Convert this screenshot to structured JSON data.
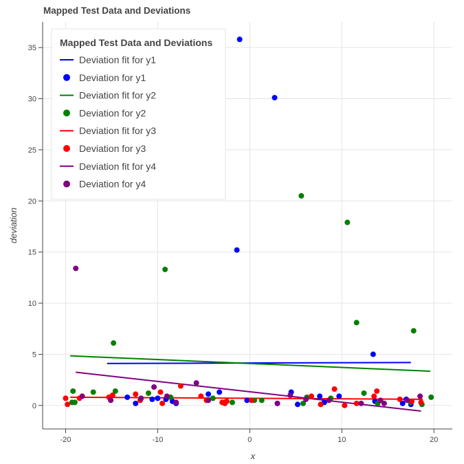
{
  "chart_data": {
    "type": "scatter",
    "title": "Mapped Test Data and Deviations",
    "xlabel": "x",
    "ylabel": "deviation",
    "xlim": [
      -22.5,
      22.0
    ],
    "ylim": [
      -2.3,
      37.5
    ],
    "xticks": [
      -20,
      -10,
      0,
      10,
      20
    ],
    "yticks": [
      0,
      5,
      10,
      15,
      20,
      25,
      30,
      35
    ],
    "grid": true,
    "legend": {
      "title": "Mapped Test Data and Deviations",
      "placement": "top-left"
    },
    "colors": {
      "y1": "#0000ff",
      "y2": "#008000",
      "y3": "#ff0000",
      "y4": "#800080"
    },
    "series": [
      {
        "name": "Deviation fit for y1",
        "kind": "line",
        "color": "#0000ff",
        "x": [
          -15.5,
          17.5
        ],
        "y": [
          4.1,
          4.2
        ]
      },
      {
        "name": "Deviation for y1",
        "kind": "scatter",
        "color": "#0000ff",
        "x": [
          -1.1,
          2.7,
          -1.4,
          13.4,
          -13.3,
          -12.4,
          -10.6,
          -10.0,
          -9.1,
          -8.4,
          -3.3,
          -0.3,
          4.5,
          5.2,
          7.6,
          8.1,
          9.7,
          13.6,
          16.6,
          17.0,
          17.5,
          -4.5,
          -8.0,
          3.0
        ],
        "y": [
          35.8,
          30.1,
          15.2,
          5.0,
          0.8,
          0.2,
          0.6,
          0.7,
          0.6,
          0.4,
          1.3,
          0.5,
          1.3,
          0.1,
          0.9,
          0.3,
          0.9,
          0.4,
          0.2,
          0.6,
          0.1,
          1.1,
          0.2,
          0.2
        ]
      },
      {
        "name": "Deviation fit for y2",
        "kind": "line",
        "color": "#008000",
        "x": [
          -19.5,
          19.6
        ],
        "y": [
          4.85,
          3.35
        ]
      },
      {
        "name": "Deviation for y2",
        "kind": "scatter",
        "color": "#008000",
        "x": [
          5.6,
          10.6,
          -9.2,
          11.6,
          17.8,
          -14.8,
          -19.2,
          -19.0,
          -17.0,
          -14.6,
          -11.0,
          -8.6,
          -4.0,
          -1.9,
          0.5,
          1.3,
          5.8,
          6.2,
          8.8,
          12.4,
          13.9,
          17.5,
          18.7,
          19.7,
          -19.3,
          -2.7
        ],
        "y": [
          20.5,
          17.9,
          13.3,
          8.1,
          7.3,
          6.1,
          1.4,
          0.3,
          1.3,
          1.4,
          1.2,
          0.8,
          0.7,
          0.3,
          0.5,
          0.5,
          0.2,
          0.8,
          0.7,
          1.2,
          0.2,
          0.3,
          0.1,
          0.8,
          0.3,
          0.3
        ]
      },
      {
        "name": "Deviation fit for y3",
        "kind": "line",
        "color": "#ff0000",
        "x": [
          -19.5,
          18.8
        ],
        "y": [
          0.8,
          0.6
        ]
      },
      {
        "name": "Deviation for y3",
        "kind": "scatter",
        "color": "#ff0000",
        "x": [
          -20.0,
          -19.8,
          -18.5,
          -15.3,
          -14.9,
          -12.4,
          -9.7,
          -9.5,
          -7.5,
          -5.3,
          -4.7,
          -3.0,
          -2.7,
          -2.5,
          0.2,
          6.7,
          7.7,
          9.2,
          10.3,
          11.6,
          13.5,
          13.8,
          16.3,
          17.6,
          18.6,
          -11.9
        ],
        "y": [
          0.7,
          0.1,
          0.7,
          0.8,
          1.0,
          1.1,
          1.3,
          0.2,
          1.9,
          0.9,
          0.5,
          0.3,
          0.2,
          0.4,
          0.5,
          0.9,
          0.1,
          1.6,
          0.0,
          0.2,
          0.9,
          1.4,
          0.6,
          0.4,
          0.3,
          0.5
        ]
      },
      {
        "name": "Deviation fit for y4",
        "kind": "line",
        "color": "#800080",
        "x": [
          -18.9,
          18.6
        ],
        "y": [
          3.25,
          -0.55
        ]
      },
      {
        "name": "Deviation for y4",
        "kind": "scatter",
        "color": "#800080",
        "x": [
          -18.9,
          -18.2,
          -15.1,
          -10.4,
          -8.0,
          -5.8,
          -4.5,
          3.0,
          4.4,
          6.1,
          8.6,
          12.1,
          14.2,
          14.6,
          17.1,
          18.5,
          -11.8,
          -9.0
        ],
        "y": [
          13.4,
          0.9,
          0.5,
          1.8,
          0.3,
          2.2,
          0.5,
          0.2,
          1.0,
          0.6,
          0.5,
          0.2,
          0.5,
          0.2,
          0.5,
          0.9,
          0.7,
          0.9
        ]
      }
    ]
  }
}
